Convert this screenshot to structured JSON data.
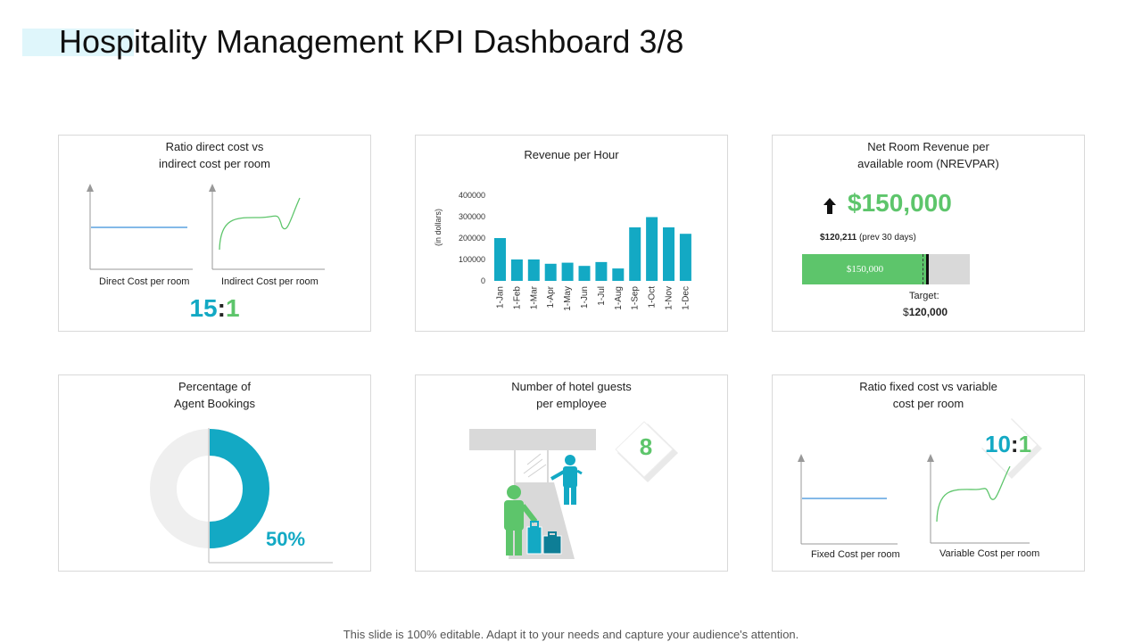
{
  "title": "Hospitality Management KPI Dashboard 3/8",
  "colors": {
    "teal": "#13a9c4",
    "green": "#5dc56b",
    "blue": "#3b8fd9",
    "grey": "#d9d9d9"
  },
  "card1": {
    "title_line1": "Ratio direct cost vs",
    "title_line2": "indirect cost per room",
    "label_left": "Direct Cost per room",
    "label_right": "Indirect Cost per room",
    "ratio_left": "15",
    "ratio_sep": ":",
    "ratio_right": "1"
  },
  "card2": {
    "title": "Revenue per Hour",
    "ylabel": "(in dollars)"
  },
  "chart_data": {
    "type": "bar",
    "title": "Revenue per Hour",
    "ylabel": "(in dollars)",
    "xlabel": "",
    "ylim": [
      0,
      400000
    ],
    "yticks": [
      "400000",
      "300000",
      "200000",
      "100000",
      "0"
    ],
    "categories": [
      "1-Jan",
      "1-Feb",
      "1-Mar",
      "1-Apr",
      "1-May",
      "1-Jun",
      "1-Jul",
      "1-Aug",
      "1-Sep",
      "1-Oct",
      "1-Nov",
      "1-Dec"
    ],
    "values": [
      200000,
      100000,
      100000,
      80000,
      85000,
      70000,
      88000,
      58000,
      250000,
      298000,
      250000,
      220000
    ],
    "grid": false,
    "legend": "none"
  },
  "card3": {
    "title_line1": "Net Room Revenue per",
    "title_line2": "available room (NREVPAR)",
    "big_value": "$150,000",
    "prev_value": "$120,211",
    "prev_label": "(prev 30 days)",
    "bar_label": "$150,000",
    "target_label": "Target:",
    "target_dollar": "$",
    "target_value": "120,000",
    "progress_fraction": 0.75,
    "target_fraction": 0.72
  },
  "card4": {
    "title_line1": "Percentage of",
    "title_line2": "Agent Bookings",
    "percent": "50%",
    "fraction": 0.5
  },
  "card5": {
    "title_line1": "Number of hotel guests",
    "title_line2": "per employee",
    "value": "8"
  },
  "card6": {
    "title_line1": "Ratio fixed cost vs variable",
    "title_line2": "cost per room",
    "ratio_left": "10",
    "ratio_sep": ":",
    "ratio_right": "1",
    "label_left": "Fixed Cost per room",
    "label_right": "Variable Cost per room"
  },
  "footer": "This slide is 100% editable. Adapt it to your needs and capture your audience's attention."
}
